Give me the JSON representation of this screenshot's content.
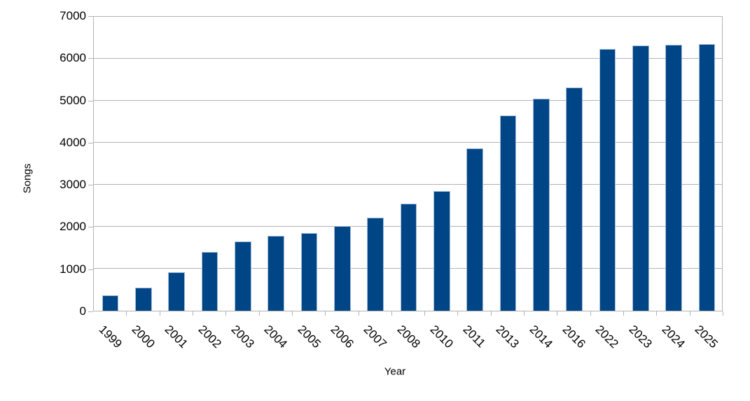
{
  "chart_data": {
    "type": "bar",
    "title": "",
    "xlabel": "Year",
    "ylabel": "Songs",
    "categories": [
      "1999",
      "2000",
      "2001",
      "2002",
      "2003",
      "2004",
      "2005",
      "2006",
      "2007",
      "2008",
      "2010",
      "2011",
      "2013",
      "2014",
      "2016",
      "2022",
      "2023",
      "2024",
      "2025"
    ],
    "values": [
      360,
      550,
      910,
      1390,
      1650,
      1770,
      1840,
      2000,
      2200,
      2540,
      2840,
      3850,
      4630,
      5030,
      5290,
      6200,
      6290,
      6300,
      6320
    ],
    "ylim": [
      0,
      7000
    ],
    "ytick_step": 1000,
    "ytick_labels": [
      "0",
      "1000",
      "2000",
      "3000",
      "4000",
      "5000",
      "6000",
      "7000"
    ],
    "grid": true,
    "legend": "none",
    "bar_color": "#004586",
    "bar_border_color": "#a3bcd9",
    "grid_color": "#b3b3b3",
    "axis_color": "#b3b3b3",
    "text_color": "#000000",
    "background_color": "#ffffff"
  }
}
